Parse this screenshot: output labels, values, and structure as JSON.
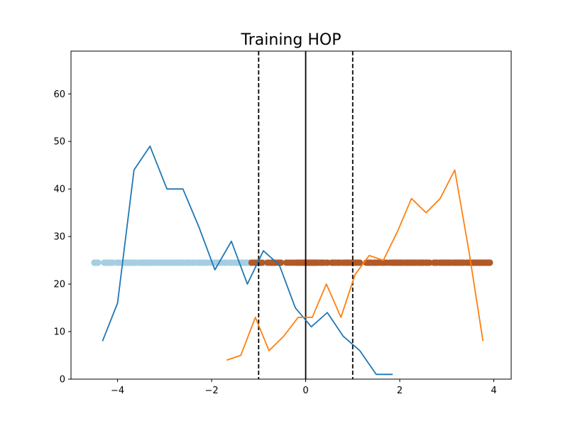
{
  "chart_data": {
    "type": "line",
    "title": "Training HOP",
    "xlabel": "",
    "ylabel": "",
    "xlim": [
      -4.99,
      4.37
    ],
    "ylim": [
      0,
      69
    ],
    "xticks": [
      -4,
      -2,
      0,
      2,
      4
    ],
    "yticks": [
      0,
      10,
      20,
      30,
      40,
      50,
      60
    ],
    "xtick_labels": [
      "−4",
      "−2",
      "0",
      "2",
      "4"
    ],
    "ytick_labels": [
      "0",
      "10",
      "20",
      "30",
      "40",
      "50",
      "60"
    ],
    "grid": false,
    "legend": "none",
    "series": [
      {
        "color": "#1f77b4",
        "x": [
          -4.32,
          -4.0,
          -3.65,
          -3.31,
          -2.95,
          -2.61,
          -2.27,
          -1.93,
          -1.58,
          -1.24,
          -0.9,
          -0.56,
          -0.22,
          0.12,
          0.46,
          0.8,
          1.15,
          1.5,
          1.85
        ],
        "y": [
          8,
          16,
          44,
          49,
          40,
          40,
          32,
          23,
          29,
          20,
          27,
          24,
          15,
          11,
          14,
          9,
          6,
          1,
          1
        ]
      },
      {
        "color": "#ff7f0e",
        "x": [
          -1.68,
          -1.38,
          -1.07,
          -0.78,
          -0.47,
          -0.16,
          0.14,
          0.44,
          0.75,
          1.05,
          1.35,
          1.65,
          1.95,
          2.25,
          2.56,
          2.86,
          3.17,
          3.47,
          3.77
        ],
        "y": [
          4,
          5,
          13,
          6,
          9,
          13,
          13,
          20,
          13,
          22,
          26,
          25,
          31,
          38,
          35,
          38,
          44,
          27,
          8
        ]
      }
    ],
    "scatter": {
      "y": 24.5,
      "groups": [
        {
          "color": "#a6cee3",
          "range": [
            -4.5,
            0.8
          ]
        },
        {
          "color": "#b15928",
          "range": [
            -1.2,
            3.92
          ]
        }
      ]
    },
    "vlines": [
      {
        "x": -1,
        "style": "dashed",
        "color": "#000000"
      },
      {
        "x": 0,
        "style": "solid",
        "color": "#000000"
      },
      {
        "x": 1,
        "style": "dashed",
        "color": "#000000"
      }
    ]
  }
}
